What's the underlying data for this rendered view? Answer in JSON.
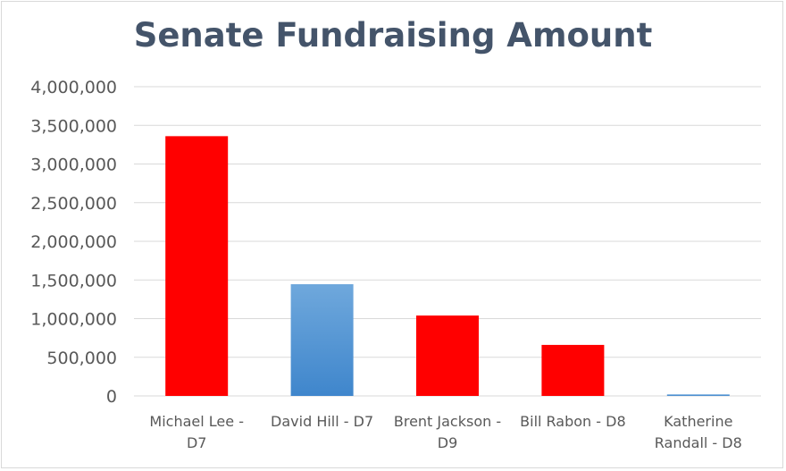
{
  "chart_data": {
    "type": "bar",
    "title": "Senate Fundraising Amount",
    "categories": [
      [
        "Michael Lee -",
        "D7"
      ],
      [
        "David Hill - D7"
      ],
      [
        "Brent Jackson -",
        "D9"
      ],
      [
        "Bill Rabon - D8"
      ],
      [
        "Katherine",
        "Randall - D8"
      ]
    ],
    "values": [
      3360000,
      1445000,
      1040000,
      660000,
      20000
    ],
    "bar_colors": [
      "#ff0000",
      "gradient-blue",
      "#ff0000",
      "#ff0000",
      "gradient-blue"
    ],
    "yticks": [
      "0",
      "500,000",
      "1,000,000",
      "1,500,000",
      "2,000,000",
      "2,500,000",
      "3,000,000",
      "3,500,000",
      "4,000,000"
    ],
    "ylim": [
      0,
      4000000
    ],
    "xlabel": "",
    "ylabel": "",
    "grid": true,
    "legend": "none"
  }
}
